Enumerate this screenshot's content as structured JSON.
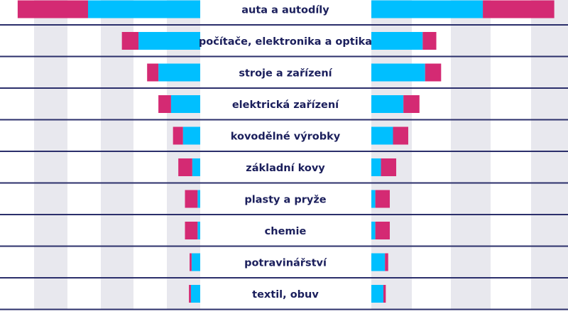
{
  "chart_data": {
    "type": "bar",
    "orientation": "horizontal-diverging-stacked",
    "categories": [
      "auta a autodíly",
      "počítače, elektronika a optika",
      "stroje a zařízení",
      "elektrická zařízení",
      "kovodělné výrobky",
      "základní kovy",
      "plasty a pryže",
      "chemie",
      "potravinářství",
      "textil, obuv"
    ],
    "left": {
      "direction": "leftward",
      "series": [
        {
          "color": "#00bfff",
          "values": [
            1.69,
            0.93,
            0.63,
            0.44,
            0.26,
            0.12,
            0.04,
            0.04,
            0.13,
            0.14
          ]
        },
        {
          "color": "#d42a73",
          "values": [
            1.06,
            0.25,
            0.17,
            0.19,
            0.15,
            0.21,
            0.19,
            0.19,
            0.03,
            0.03
          ]
        }
      ],
      "xlim": [
        0,
        2.75
      ]
    },
    "right": {
      "direction": "rightward",
      "series": [
        {
          "color": "#00bfff",
          "values": [
            1.39,
            0.64,
            0.67,
            0.4,
            0.27,
            0.12,
            0.05,
            0.05,
            0.17,
            0.15
          ]
        },
        {
          "color": "#d42a73",
          "values": [
            0.89,
            0.17,
            0.2,
            0.2,
            0.19,
            0.19,
            0.18,
            0.18,
            0.04,
            0.03
          ]
        }
      ],
      "xlim": [
        0,
        2.45
      ]
    },
    "grid": "alternating vertical bands",
    "band_color": "#e8e8ee",
    "separator_color": "#2b2f6b",
    "label_color": "#1b1f5c"
  }
}
